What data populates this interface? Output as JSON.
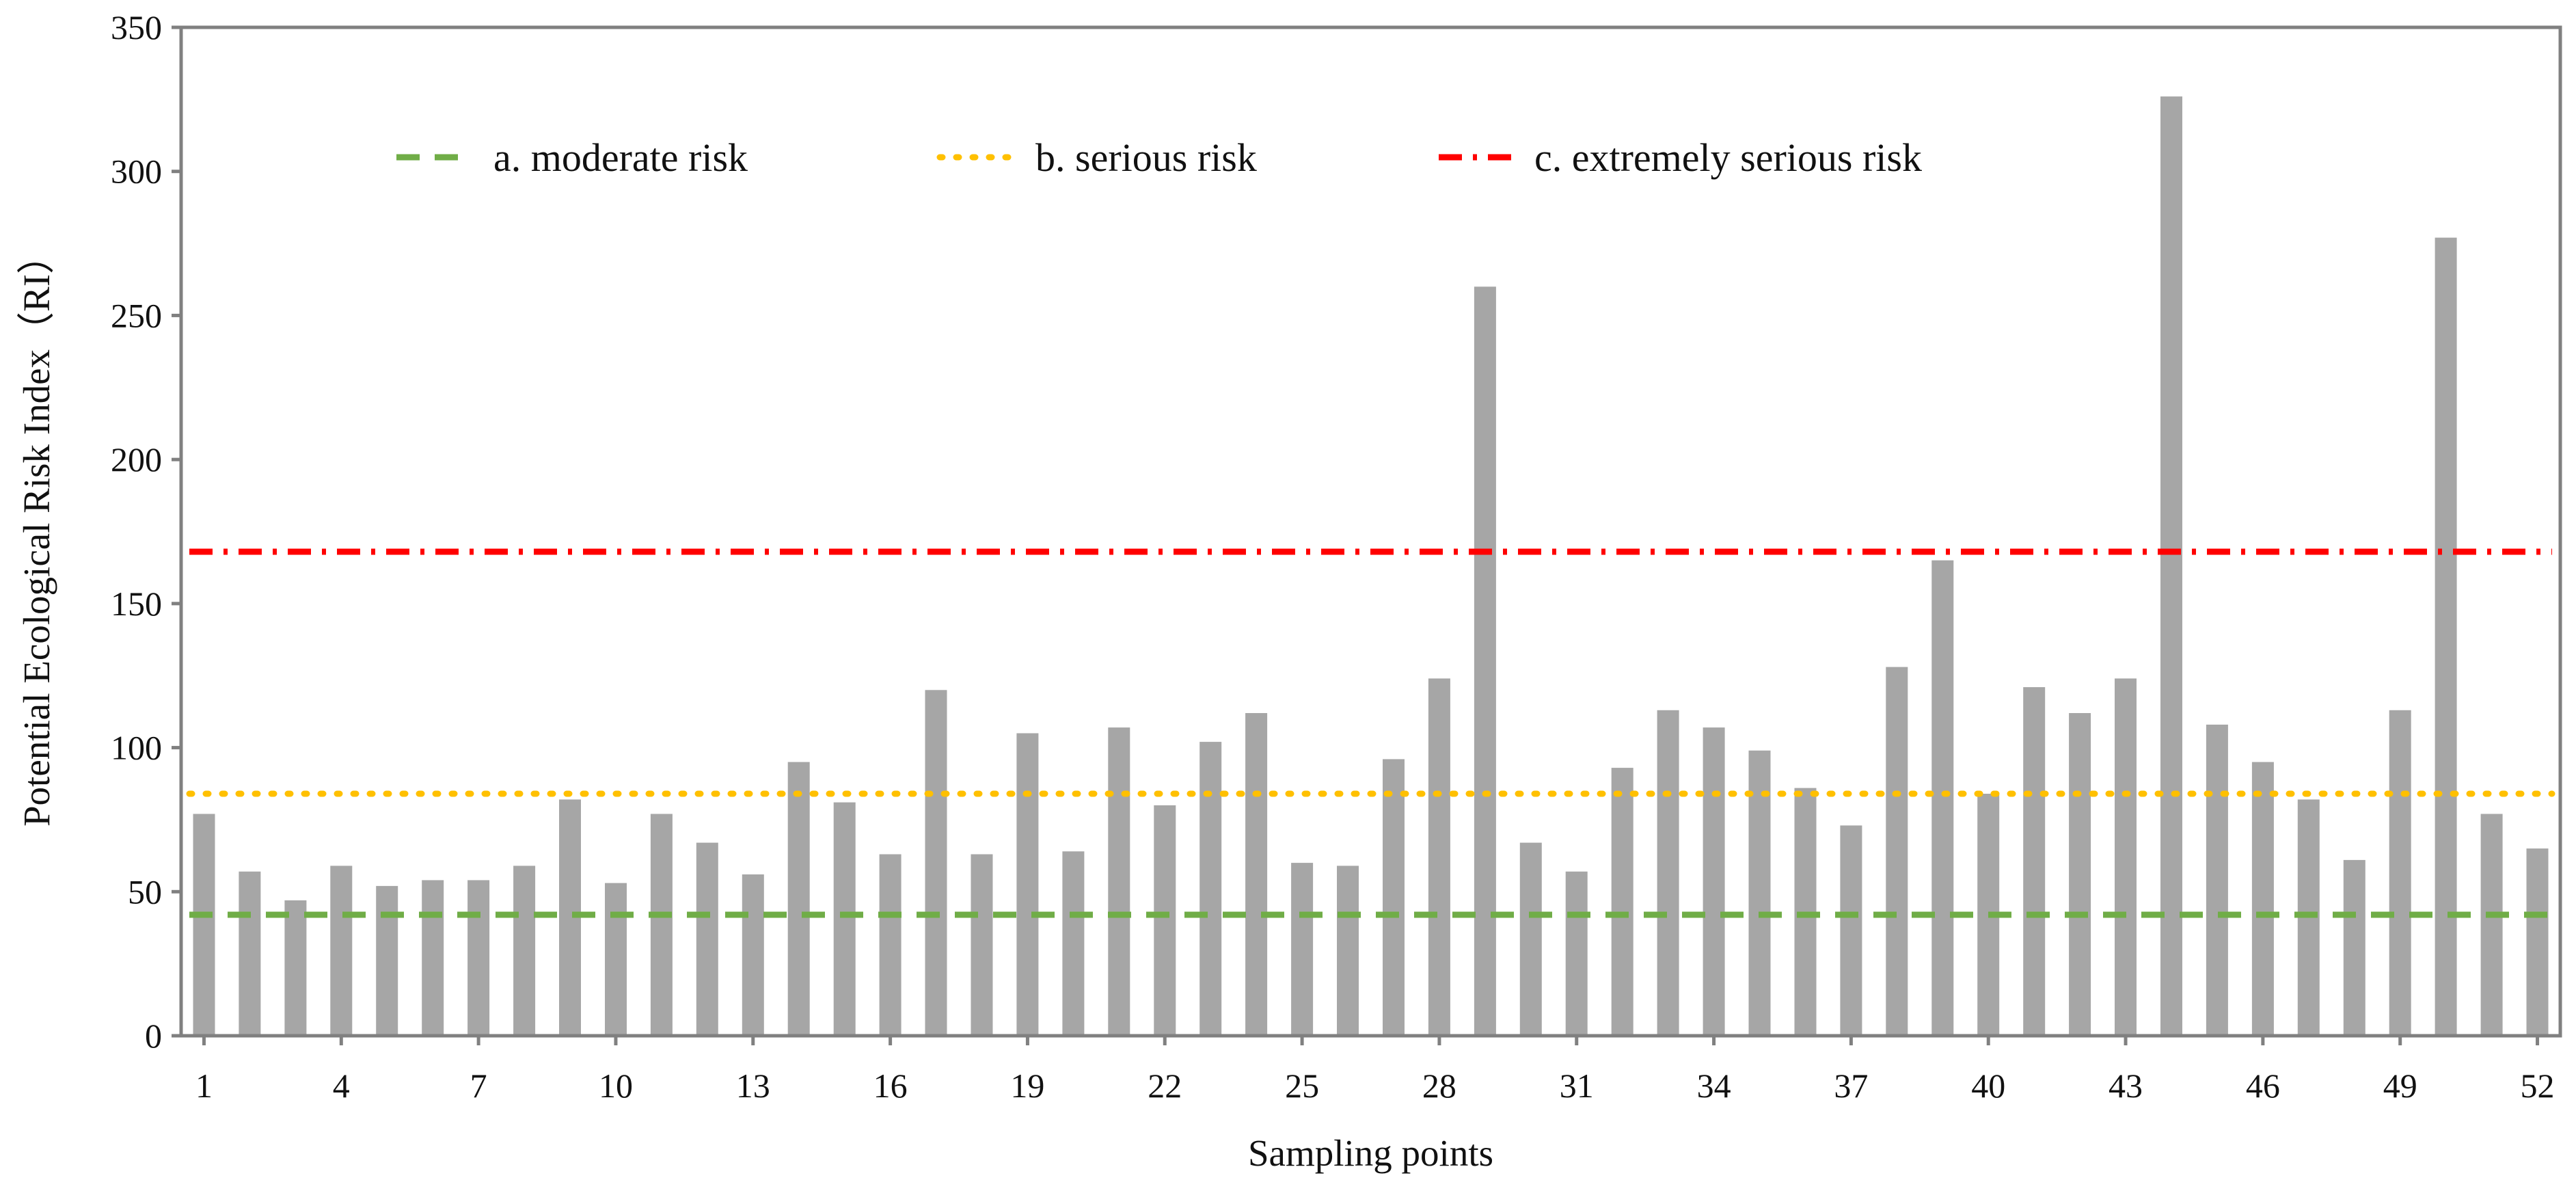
{
  "chart_data": {
    "type": "bar",
    "xlabel": "Sampling points",
    "ylabel": "Potential Ecological Risk Index（RI）",
    "ylim": [
      0,
      350
    ],
    "yticks": [
      "0",
      "50",
      "100",
      "150",
      "200",
      "250",
      "300",
      "350"
    ],
    "xticks": [
      "1",
      "4",
      "7",
      "10",
      "13",
      "16",
      "19",
      "22",
      "25",
      "28",
      "31",
      "34",
      "37",
      "40",
      "43",
      "46",
      "49",
      "52"
    ],
    "categories": [
      "1",
      "2",
      "3",
      "4",
      "5",
      "6",
      "7",
      "8",
      "9",
      "10",
      "11",
      "12",
      "13",
      "14",
      "15",
      "16",
      "17",
      "18",
      "19",
      "20",
      "21",
      "22",
      "23",
      "24",
      "25",
      "26",
      "27",
      "28",
      "29",
      "30",
      "31",
      "32",
      "33",
      "34",
      "35",
      "36",
      "37",
      "38",
      "39",
      "40",
      "41",
      "42",
      "43",
      "44",
      "45",
      "46",
      "47",
      "48",
      "49",
      "50",
      "51",
      "52"
    ],
    "values": [
      77,
      57,
      47,
      59,
      52,
      54,
      54,
      59,
      82,
      53,
      77,
      67,
      56,
      95,
      81,
      63,
      120,
      63,
      105,
      64,
      107,
      80,
      102,
      112,
      60,
      59,
      96,
      124,
      260,
      67,
      57,
      93,
      113,
      107,
      99,
      86,
      73,
      128,
      165,
      84,
      121,
      112,
      124,
      326,
      108,
      95,
      82,
      61,
      113,
      277,
      77,
      65
    ],
    "bar_color": "#a6a6a6",
    "grid": false,
    "reference_lines": [
      {
        "label": "a. moderate risk",
        "value": 42,
        "color": "#70ad47",
        "style": "dashed"
      },
      {
        "label": "b. serious risk",
        "value": 84,
        "color": "#ffc000",
        "style": "dotted"
      },
      {
        "label": "c. extremely serious risk",
        "value": 168,
        "color": "#ff0000",
        "style": "dash-dot"
      }
    ],
    "legend_position": "top"
  }
}
